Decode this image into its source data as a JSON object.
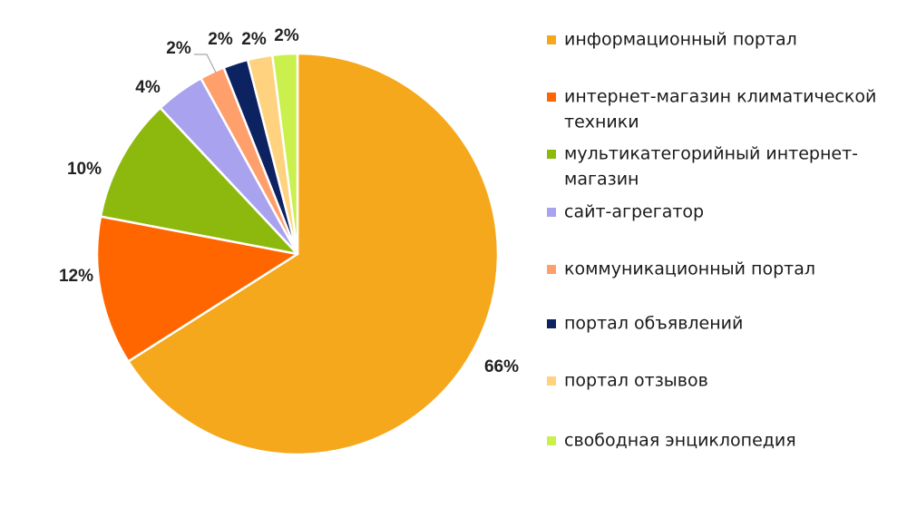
{
  "chart_data": {
    "type": "pie",
    "title": "",
    "legend_position": "right",
    "slices": [
      {
        "label": "информационный портал",
        "value": 66,
        "display": "66%",
        "color": "#F5A81C",
        "legend_lines": [
          "информационный портал"
        ]
      },
      {
        "label": "интернет-магазин климатической техники",
        "value": 12,
        "display": "12%",
        "color": "#FF6600",
        "legend_lines": [
          "интернет-магазин климатической",
          "техники"
        ]
      },
      {
        "label": "мультикатегорийный интернет-магазин",
        "value": 10,
        "display": "10%",
        "color": "#8DB90F",
        "legend_lines": [
          "мультикатегорийный интернет-",
          "магазин"
        ]
      },
      {
        "label": "сайт-агрегатор",
        "value": 4,
        "display": "4%",
        "color": "#A9A2EE",
        "legend_lines": [
          "сайт-агрегатор"
        ]
      },
      {
        "label": "коммуникационный портал",
        "value": 2,
        "display": "2%",
        "color": "#FF9F6B",
        "legend_lines": [
          "коммуникационный портал"
        ]
      },
      {
        "label": "портал объявлений",
        "value": 2,
        "display": "2%",
        "color": "#0D2260",
        "legend_lines": [
          "портал объявлений"
        ]
      },
      {
        "label": "портал отзывов",
        "value": 2,
        "display": "2%",
        "color": "#FFD27F",
        "legend_lines": [
          "портал отзывов"
        ]
      },
      {
        "label": "свободная энциклопедия",
        "value": 2,
        "display": "2%",
        "color": "#C9F04C",
        "legend_lines": [
          "свободная энциклопедия"
        ]
      }
    ]
  }
}
